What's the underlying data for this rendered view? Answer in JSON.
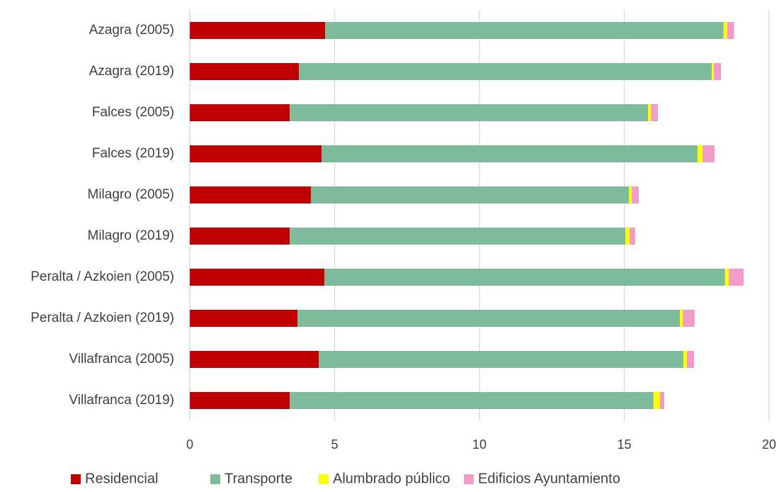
{
  "chart_data": {
    "type": "stacked_bar_horizontal",
    "categories": [
      "Azagra (2005)",
      "Azagra (2019)",
      "Falces (2005)",
      "Falces (2019)",
      "Milagro (2005)",
      "Milagro (2019)",
      "Peralta / Azkoien (2005)",
      "Peralta / Azkoien (2019)",
      "Villafranca (2005)",
      "Villafranca (2019)"
    ],
    "series": [
      {
        "name": "Residencial",
        "color": "#c00000",
        "values": [
          4.67,
          3.77,
          3.45,
          4.55,
          4.18,
          3.45,
          4.65,
          3.72,
          4.45,
          3.45
        ]
      },
      {
        "name": "Transporte",
        "color": "#7dbb9a",
        "values": [
          13.76,
          14.25,
          12.37,
          12.98,
          10.98,
          11.59,
          13.83,
          13.2,
          12.59,
          12.56
        ]
      },
      {
        "name": "Alumbrado público",
        "color": "#ffff00",
        "values": [
          0.12,
          0.07,
          0.1,
          0.17,
          0.1,
          0.14,
          0.13,
          0.1,
          0.12,
          0.22
        ]
      },
      {
        "name": "Edificios Ayuntamiento",
        "color": "#f19bc8",
        "values": [
          0.24,
          0.25,
          0.24,
          0.42,
          0.24,
          0.2,
          0.51,
          0.41,
          0.25,
          0.15
        ]
      }
    ],
    "xlim": [
      0,
      20
    ],
    "xticks": [
      0,
      5,
      10,
      15,
      20
    ],
    "grid": true,
    "legend": "bottom"
  }
}
